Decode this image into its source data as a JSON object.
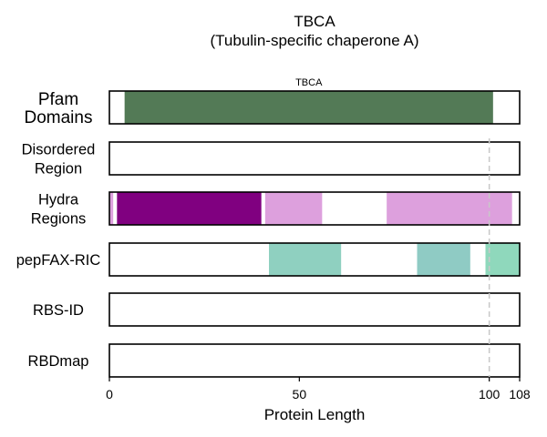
{
  "chart_data": {
    "type": "bar",
    "title": "TBCA",
    "subtitle": "(Tubulin-specific chaperone A)",
    "xlabel": "Protein Length",
    "xlim": [
      0,
      108
    ],
    "xticks": [
      0,
      50,
      100,
      108
    ],
    "reference_line_x": 100,
    "tracks": [
      {
        "name": "Pfam\nDomains",
        "segments": [
          {
            "start": 4,
            "end": 101,
            "color": "#537a56",
            "label": "TBCA"
          }
        ]
      },
      {
        "name": "Disordered\nRegion",
        "segments": []
      },
      {
        "name": "Hydra\nRegions",
        "segments": [
          {
            "start": 0,
            "end": 1,
            "color": "#dda0dd"
          },
          {
            "start": 2,
            "end": 40,
            "color": "#800080"
          },
          {
            "start": 41,
            "end": 56,
            "color": "#dda0dd"
          },
          {
            "start": 73,
            "end": 106,
            "color": "#dda0dd"
          }
        ]
      },
      {
        "name": "pepFAX-RIC",
        "segments": [
          {
            "start": 42,
            "end": 61,
            "color": "#8fd0c0"
          },
          {
            "start": 81,
            "end": 95,
            "color": "#8fcbc4"
          },
          {
            "start": 99,
            "end": 108,
            "color": "#8fd8bc"
          }
        ]
      },
      {
        "name": "RBS-ID",
        "segments": []
      },
      {
        "name": "RBDmap",
        "segments": []
      }
    ]
  }
}
